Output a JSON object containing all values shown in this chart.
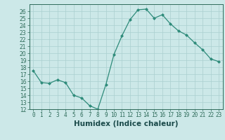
{
  "x": [
    0,
    1,
    2,
    3,
    4,
    5,
    6,
    7,
    8,
    9,
    10,
    11,
    12,
    13,
    14,
    15,
    16,
    17,
    18,
    19,
    20,
    21,
    22,
    23
  ],
  "y": [
    17.5,
    15.8,
    15.7,
    16.2,
    15.8,
    14.0,
    13.6,
    12.5,
    12.0,
    15.5,
    19.8,
    22.5,
    24.8,
    26.2,
    26.3,
    25.0,
    25.5,
    24.2,
    23.2,
    22.6,
    21.5,
    20.5,
    19.2,
    18.8
  ],
  "xlabel": "Humidex (Indice chaleur)",
  "line_color": "#2e8b7a",
  "marker_color": "#2e8b7a",
  "bg_color": "#cce8e8",
  "grid_color": "#aacfcf",
  "ylim": [
    12,
    27
  ],
  "xlim": [
    -0.5,
    23.5
  ],
  "yticks": [
    12,
    13,
    14,
    15,
    16,
    17,
    18,
    19,
    20,
    21,
    22,
    23,
    24,
    25,
    26
  ],
  "xticks": [
    0,
    1,
    2,
    3,
    4,
    5,
    6,
    7,
    8,
    9,
    10,
    11,
    12,
    13,
    14,
    15,
    16,
    17,
    18,
    19,
    20,
    21,
    22,
    23
  ],
  "xtick_labels": [
    "0",
    "1",
    "2",
    "3",
    "4",
    "5",
    "6",
    "7",
    "8",
    "9",
    "10",
    "11",
    "12",
    "13",
    "14",
    "15",
    "16",
    "17",
    "18",
    "19",
    "20",
    "21",
    "22",
    "23"
  ],
  "tick_fontsize": 5.5,
  "xlabel_fontsize": 7.5
}
